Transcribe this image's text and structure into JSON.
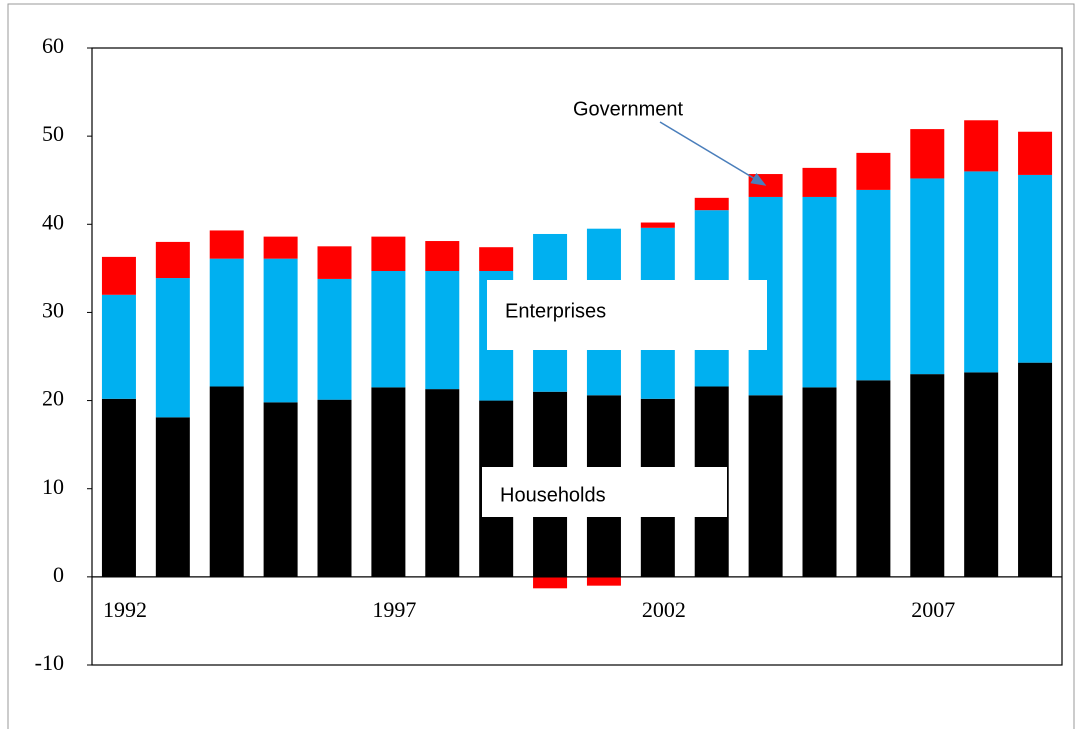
{
  "chart_data": {
    "type": "stacked_bar",
    "categories": [
      "1992",
      null,
      null,
      null,
      null,
      "1997",
      null,
      null,
      null,
      null,
      "2002",
      null,
      null,
      null,
      null,
      "2007",
      null,
      null
    ],
    "series": [
      {
        "name": "Households",
        "color": "#000000",
        "values": [
          20.2,
          18.1,
          21.6,
          19.8,
          20.1,
          21.5,
          21.3,
          20.0,
          21.0,
          20.6,
          20.2,
          21.6,
          20.6,
          21.5,
          22.3,
          23.0,
          23.2,
          24.3
        ]
      },
      {
        "name": "Enterprises",
        "color": "#00b0f0",
        "values": [
          11.8,
          15.8,
          14.5,
          16.3,
          13.7,
          13.2,
          13.4,
          14.7,
          17.9,
          18.9,
          19.4,
          20.0,
          22.5,
          21.6,
          21.6,
          22.2,
          22.8,
          21.3
        ]
      },
      {
        "name": "Government",
        "color": "#ff0000",
        "values": [
          4.3,
          4.1,
          3.2,
          2.5,
          3.7,
          3.9,
          3.4,
          2.7,
          -1.3,
          -1.0,
          0.6,
          1.4,
          2.6,
          3.3,
          4.2,
          5.6,
          5.8,
          4.9
        ]
      }
    ],
    "ylim": [
      -10,
      60
    ],
    "yticks": [
      -10,
      0,
      10,
      20,
      30,
      40,
      50,
      60
    ],
    "grid": false
  }
}
